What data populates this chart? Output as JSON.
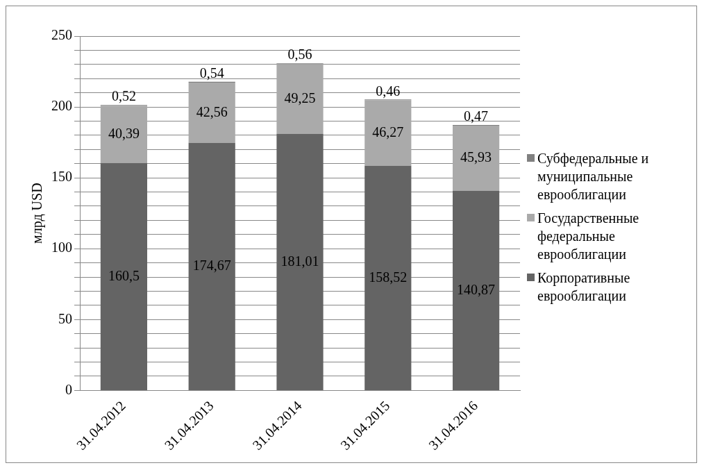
{
  "chart_data": {
    "type": "bar",
    "stacked": true,
    "ylabel": "млрд USD",
    "categories": [
      "31.04.2012",
      "31.04.2013",
      "31.04.2014",
      "31.04.2015",
      "31.04.2016"
    ],
    "series": [
      {
        "name": "Корпоративные еврооблигации",
        "color": "#646464",
        "values": [
          160.5,
          174.67,
          181.01,
          158.52,
          140.87
        ],
        "value_labels": [
          "160,5",
          "174,67",
          "181,01",
          "158,52",
          "140,87"
        ]
      },
      {
        "name": "Государственные федеральные еврооблигации",
        "color": "#aaaaaa",
        "values": [
          40.39,
          42.56,
          49.25,
          46.27,
          45.93
        ],
        "value_labels": [
          "40,39",
          "42,56",
          "49,25",
          "46,27",
          "45,93"
        ]
      },
      {
        "name": "Субфедеральные и муниципальные еврооблигации",
        "color": "#808080",
        "values": [
          0.52,
          0.54,
          0.56,
          0.46,
          0.47
        ],
        "value_labels": [
          "0,52",
          "0,54",
          "0,56",
          "0,46",
          "0,47"
        ]
      }
    ],
    "ylim": [
      0,
      250
    ],
    "yticks": [
      0,
      {
        "value": 10,
        "label": null
      },
      {
        "value": 20,
        "label": null
      },
      {
        "value": 30,
        "label": null
      },
      {
        "value": 40,
        "label": null
      },
      50,
      {
        "value": 60,
        "label": null
      },
      {
        "value": 70,
        "label": null
      },
      {
        "value": 80,
        "label": null
      },
      {
        "value": 90,
        "label": null
      },
      100,
      {
        "value": 110,
        "label": null
      },
      {
        "value": 120,
        "label": null
      },
      {
        "value": 130,
        "label": null
      },
      {
        "value": 140,
        "label": null
      },
      150,
      {
        "value": 160,
        "label": null
      },
      {
        "value": 170,
        "label": null
      },
      {
        "value": 180,
        "label": null
      },
      {
        "value": 190,
        "label": null
      },
      200,
      {
        "value": 210,
        "label": null
      },
      {
        "value": 220,
        "label": null
      },
      {
        "value": 230,
        "label": null
      },
      {
        "value": 240,
        "label": null
      },
      250
    ],
    "grid": "y",
    "legend": "right"
  }
}
